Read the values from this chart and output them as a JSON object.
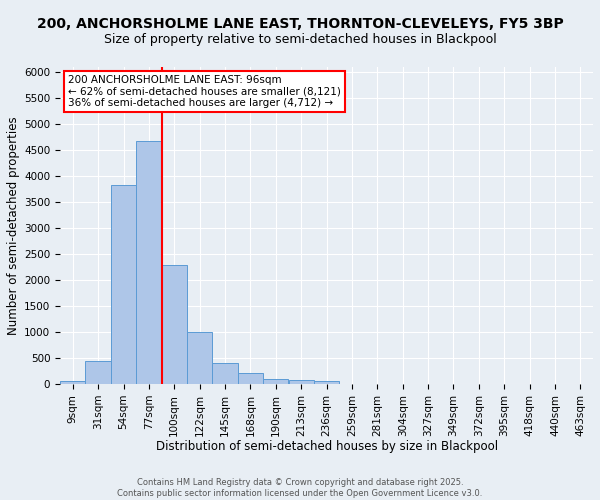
{
  "title1": "200, ANCHORSHOLME LANE EAST, THORNTON-CLEVELEYS, FY5 3BP",
  "title2": "Size of property relative to semi-detached houses in Blackpool",
  "xlabel": "Distribution of semi-detached houses by size in Blackpool",
  "ylabel": "Number of semi-detached properties",
  "bins": [
    "9sqm",
    "31sqm",
    "54sqm",
    "77sqm",
    "100sqm",
    "122sqm",
    "145sqm",
    "168sqm",
    "190sqm",
    "213sqm",
    "236sqm",
    "259sqm",
    "281sqm",
    "304sqm",
    "327sqm",
    "349sqm",
    "372sqm",
    "395sqm",
    "418sqm",
    "440sqm",
    "463sqm"
  ],
  "values": [
    50,
    450,
    3820,
    4680,
    2290,
    1000,
    410,
    205,
    100,
    75,
    55,
    0,
    0,
    0,
    0,
    0,
    0,
    0,
    0,
    0,
    0
  ],
  "bar_color": "#aec6e8",
  "bar_edge_color": "#5b9bd5",
  "vline_x": 4,
  "vline_color": "red",
  "annotation_text": "200 ANCHORSHOLME LANE EAST: 96sqm\n← 62% of semi-detached houses are smaller (8,121)\n36% of semi-detached houses are larger (4,712) →",
  "annotation_box_color": "white",
  "annotation_box_edge": "red",
  "ylim": [
    0,
    6100
  ],
  "yticks": [
    0,
    500,
    1000,
    1500,
    2000,
    2500,
    3000,
    3500,
    4000,
    4500,
    5000,
    5500,
    6000
  ],
  "background_color": "#e8eef4",
  "grid_color": "white",
  "footer": "Contains HM Land Registry data © Crown copyright and database right 2025.\nContains public sector information licensed under the Open Government Licence v3.0.",
  "title_fontsize": 10,
  "subtitle_fontsize": 9,
  "axis_fontsize": 8.5,
  "tick_fontsize": 7.5,
  "annotation_fontsize": 7.5,
  "footer_fontsize": 6
}
